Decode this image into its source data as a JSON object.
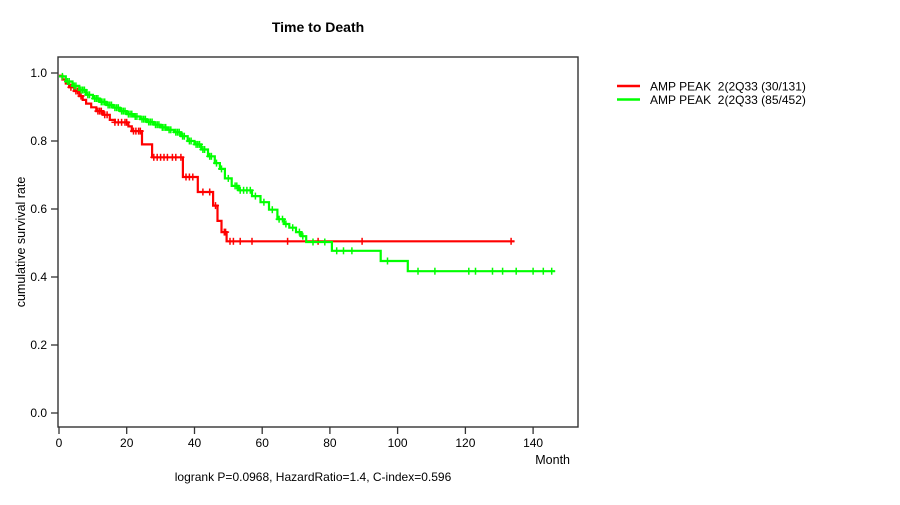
{
  "figure": {
    "background": "#ffffff",
    "axis_color": "#333333",
    "text_color": "#000000"
  },
  "chart_data": {
    "type": "line",
    "subtype": "kaplan-meier-step-survival",
    "title": "Time to Death",
    "xlabel": "Month",
    "ylabel": "cumulative survival rate",
    "annotation": "logrank P=0.0968, HazardRatio=1.4, C-index=0.596",
    "xlim": [
      0,
      147
    ],
    "ylim": [
      0.0,
      1.0
    ],
    "x_ticks": [
      0,
      20,
      40,
      60,
      80,
      100,
      120,
      140
    ],
    "y_ticks": [
      "1.0",
      "0.8",
      "0.6",
      "0.4",
      "0.2",
      "0.0"
    ],
    "grid": false,
    "axis_color": "#333333",
    "legend": {
      "position": "right-outside",
      "entries": [
        {
          "label": "AMP PEAK  2(2Q33 (30/131)",
          "color": "#ff0000"
        },
        {
          "label": "AMP PEAK  2(2Q33 (85/452)",
          "color": "#00ff00"
        }
      ]
    },
    "series": [
      {
        "name": "AMP PEAK  2(2Q33 (30/131)",
        "color": "#ff0000",
        "end_month": 134.5,
        "steps": [
          [
            0,
            0.992
          ],
          [
            1,
            0.981
          ],
          [
            2,
            0.969
          ],
          [
            3,
            0.958
          ],
          [
            4.5,
            0.947
          ],
          [
            6,
            0.932
          ],
          [
            7,
            0.921
          ],
          [
            8,
            0.91
          ],
          [
            9.5,
            0.899
          ],
          [
            11,
            0.888
          ],
          [
            13,
            0.877
          ],
          [
            15,
            0.862
          ],
          [
            16.5,
            0.855
          ],
          [
            20.5,
            0.843
          ],
          [
            21.5,
            0.829
          ],
          [
            24.5,
            0.79
          ],
          [
            27.5,
            0.752
          ],
          [
            36.6,
            0.694
          ],
          [
            41,
            0.65
          ],
          [
            45.5,
            0.61
          ],
          [
            46.8,
            0.565
          ],
          [
            48,
            0.532
          ],
          [
            49.5,
            0.505
          ]
        ],
        "censor_months": [
          3.5,
          5,
          5.5,
          6.5,
          11.5,
          12,
          12.5,
          13.5,
          14.2,
          16.5,
          17.5,
          18.5,
          19.5,
          20,
          22,
          22.7,
          23.5,
          24,
          28,
          29,
          30,
          31,
          32,
          33.5,
          34.5,
          36,
          37.5,
          38.5,
          39.5,
          42.5,
          44.5,
          46.2,
          48.8,
          49.2,
          50.5,
          51.5,
          53.5,
          57,
          67.5,
          76.5,
          89.5,
          133.5
        ]
      },
      {
        "name": "AMP PEAK  2(2Q33 (85/452)",
        "color": "#00ff00",
        "end_month": 146.5,
        "steps": [
          [
            0,
            0.99
          ],
          [
            2,
            0.975
          ],
          [
            4,
            0.962
          ],
          [
            6,
            0.95
          ],
          [
            8,
            0.936
          ],
          [
            10,
            0.925
          ],
          [
            12,
            0.915
          ],
          [
            14,
            0.906
          ],
          [
            16,
            0.898
          ],
          [
            18,
            0.888
          ],
          [
            20,
            0.879
          ],
          [
            22,
            0.872
          ],
          [
            24,
            0.864
          ],
          [
            26,
            0.856
          ],
          [
            28,
            0.848
          ],
          [
            30,
            0.84
          ],
          [
            32,
            0.833
          ],
          [
            34,
            0.826
          ],
          [
            36,
            0.814
          ],
          [
            38,
            0.8
          ],
          [
            40,
            0.79
          ],
          [
            42,
            0.775
          ],
          [
            44,
            0.755
          ],
          [
            46,
            0.735
          ],
          [
            47.5,
            0.718
          ],
          [
            49,
            0.69
          ],
          [
            51,
            0.668
          ],
          [
            53,
            0.655
          ],
          [
            57,
            0.638
          ],
          [
            59.5,
            0.62
          ],
          [
            62,
            0.598
          ],
          [
            64.5,
            0.57
          ],
          [
            66.5,
            0.556
          ],
          [
            68,
            0.545
          ],
          [
            70,
            0.532
          ],
          [
            71.5,
            0.52
          ],
          [
            73,
            0.503
          ],
          [
            80.6,
            0.477
          ],
          [
            95,
            0.447
          ],
          [
            103,
            0.417
          ]
        ],
        "censor_months": [
          1,
          2.5,
          3,
          4.5,
          5,
          6.5,
          7,
          7.5,
          8.5,
          9,
          10.5,
          11,
          11.5,
          12.5,
          13,
          13.5,
          14.5,
          15,
          15.5,
          16.5,
          17,
          17.5,
          18.5,
          19,
          19.5,
          20.5,
          21,
          21.5,
          22.5,
          23,
          24.5,
          25,
          25.5,
          26.5,
          27,
          27.5,
          28.5,
          29,
          29.5,
          30.5,
          31,
          31.5,
          32.5,
          33,
          34.5,
          35,
          35.5,
          36.5,
          37,
          38.5,
          39,
          40.5,
          41,
          41.5,
          42.5,
          43,
          44.5,
          45,
          46.5,
          48,
          50,
          52,
          52.5,
          53.5,
          54.5,
          55.5,
          56.5,
          58,
          60.5,
          63,
          65,
          66,
          67,
          69,
          71,
          72,
          75,
          78.5,
          82,
          84,
          86.5,
          97,
          106,
          111,
          121,
          123,
          128,
          131,
          135,
          140,
          143,
          145.5
        ]
      }
    ]
  }
}
